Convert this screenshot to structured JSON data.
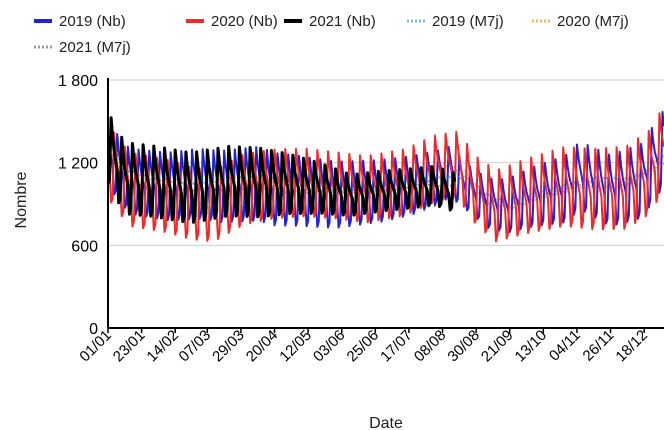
{
  "chart_data": {
    "type": "line",
    "title": "",
    "xlabel": "Date",
    "ylabel": "Nombre",
    "y_ticks": [
      "0",
      "600",
      "1 200",
      "1 800"
    ],
    "ylim": [
      0,
      1800
    ],
    "grid": true,
    "legend_position": "top",
    "x_tick_labels": [
      "01/01",
      "23/01",
      "14/02",
      "07/03",
      "29/03",
      "20/04",
      "12/05",
      "03/06",
      "25/06",
      "17/07",
      "08/08",
      "30/08",
      "21/09",
      "13/10",
      "04/11",
      "26/11",
      "18/12"
    ],
    "x_tick_days": [
      1,
      23,
      45,
      66,
      88,
      110,
      132,
      154,
      176,
      198,
      220,
      242,
      264,
      286,
      308,
      330,
      352
    ],
    "series": [
      {
        "name": "2019 (Nb)",
        "style": "solid",
        "color": "#2222dd",
        "days": 365,
        "base": [
          [
            1,
            1250
          ],
          [
            15,
            1060
          ],
          [
            40,
            1020
          ],
          [
            60,
            1040
          ],
          [
            75,
            1020
          ],
          [
            100,
            1040
          ],
          [
            110,
            1000
          ],
          [
            125,
            990
          ],
          [
            150,
            960
          ],
          [
            180,
            990
          ],
          [
            200,
            1030
          ],
          [
            215,
            1080
          ],
          [
            225,
            1130
          ],
          [
            238,
            1000
          ],
          [
            250,
            900
          ],
          [
            262,
            880
          ],
          [
            280,
            950
          ],
          [
            300,
            1000
          ],
          [
            310,
            1100
          ],
          [
            330,
            990
          ],
          [
            350,
            1060
          ],
          [
            365,
            1300
          ]
        ],
        "amp": [
          [
            1,
            250
          ],
          [
            100,
            290
          ],
          [
            200,
            230
          ],
          [
            240,
            180
          ],
          [
            300,
            260
          ],
          [
            365,
            300
          ]
        ]
      },
      {
        "name": "2020 (Nb)",
        "style": "solid",
        "color": "#ee2a2a",
        "days": 365,
        "base": [
          [
            1,
            1200
          ],
          [
            15,
            1000
          ],
          [
            40,
            950
          ],
          [
            55,
            900
          ],
          [
            70,
            880
          ],
          [
            90,
            1000
          ],
          [
            110,
            1040
          ],
          [
            130,
            1050
          ],
          [
            150,
            1030
          ],
          [
            170,
            1000
          ],
          [
            195,
            1050
          ],
          [
            215,
            1150
          ],
          [
            230,
            1180
          ],
          [
            242,
            990
          ],
          [
            255,
            880
          ],
          [
            275,
            950
          ],
          [
            300,
            1020
          ],
          [
            320,
            1000
          ],
          [
            340,
            1010
          ],
          [
            355,
            1120
          ],
          [
            365,
            1300
          ]
        ],
        "amp": [
          [
            1,
            290
          ],
          [
            70,
            280
          ],
          [
            150,
            260
          ],
          [
            230,
            260
          ],
          [
            300,
            310
          ],
          [
            365,
            330
          ]
        ]
      },
      {
        "name": "2021 (Nb)",
        "style": "solid",
        "color": "#000000",
        "days": 228,
        "base": [
          [
            1,
            1300
          ],
          [
            12,
            1080
          ],
          [
            30,
            1060
          ],
          [
            55,
            1010
          ],
          [
            80,
            1060
          ],
          [
            100,
            1050
          ],
          [
            120,
            1040
          ],
          [
            140,
            1010
          ],
          [
            160,
            960
          ],
          [
            180,
            990
          ],
          [
            200,
            1010
          ],
          [
            215,
            1030
          ],
          [
            228,
            980
          ]
        ],
        "amp": [
          [
            1,
            280
          ],
          [
            100,
            270
          ],
          [
            160,
            160
          ],
          [
            228,
            150
          ]
        ]
      },
      {
        "name": "2019 (M7j)",
        "style": "dotted",
        "color": "#7ab8f0",
        "days": 365,
        "base": [
          [
            1,
            1430
          ],
          [
            12,
            1150
          ],
          [
            30,
            1080
          ],
          [
            55,
            1060
          ],
          [
            80,
            1090
          ],
          [
            100,
            1100
          ],
          [
            120,
            1050
          ],
          [
            150,
            1000
          ],
          [
            180,
            1000
          ],
          [
            200,
            1040
          ],
          [
            220,
            1120
          ],
          [
            235,
            1100
          ],
          [
            250,
            950
          ],
          [
            262,
            900
          ],
          [
            280,
            960
          ],
          [
            300,
            1020
          ],
          [
            320,
            1080
          ],
          [
            340,
            1070
          ],
          [
            355,
            1130
          ],
          [
            365,
            1210
          ]
        ],
        "amp": [
          [
            1,
            20
          ],
          [
            365,
            20
          ]
        ]
      },
      {
        "name": "2020 (M7j)",
        "style": "dotted",
        "color": "#f5b750",
        "days": 365,
        "base": [
          [
            1,
            1380
          ],
          [
            12,
            1100
          ],
          [
            35,
            980
          ],
          [
            55,
            950
          ],
          [
            70,
            830
          ],
          [
            85,
            900
          ],
          [
            110,
            980
          ],
          [
            130,
            990
          ],
          [
            150,
            1000
          ],
          [
            175,
            990
          ],
          [
            200,
            1040
          ],
          [
            220,
            1180
          ],
          [
            235,
            1120
          ],
          [
            250,
            900
          ],
          [
            262,
            870
          ],
          [
            280,
            940
          ],
          [
            300,
            1000
          ],
          [
            320,
            1010
          ],
          [
            340,
            1040
          ],
          [
            355,
            1150
          ],
          [
            365,
            1260
          ]
        ],
        "amp": [
          [
            1,
            20
          ],
          [
            365,
            20
          ]
        ]
      },
      {
        "name": "2021 (M7j)",
        "style": "dotted",
        "color": "#999999",
        "days": 228,
        "base": [
          [
            1,
            1280
          ],
          [
            10,
            1100
          ],
          [
            30,
            1000
          ],
          [
            55,
            1000
          ],
          [
            80,
            1010
          ],
          [
            100,
            1030
          ],
          [
            120,
            990
          ],
          [
            140,
            1000
          ],
          [
            160,
            990
          ],
          [
            180,
            1000
          ],
          [
            200,
            1020
          ],
          [
            215,
            1040
          ],
          [
            228,
            1020
          ]
        ],
        "amp": [
          [
            1,
            15
          ],
          [
            228,
            15
          ]
        ]
      }
    ]
  }
}
